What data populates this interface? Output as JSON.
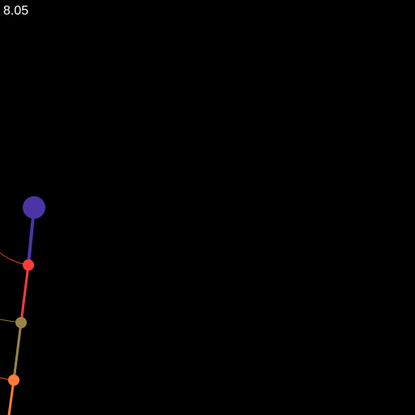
{
  "hud": {
    "timer": "8.05"
  },
  "colors": {
    "background": "#000000",
    "timer_text": "#ffffff",
    "head": "#4b35a5",
    "link_1": "#4b35a5",
    "joint_1": "#ff3b3b",
    "link_2": "#ff3b3b",
    "trail_1": "#e03a2a",
    "joint_2": "#9a8447",
    "link_3": "#9a8447",
    "trail_2": "#8c7a46",
    "joint_3": "#ff7b3a",
    "link_4": "#ff7b3a",
    "trail_3": "#e06a2a"
  }
}
